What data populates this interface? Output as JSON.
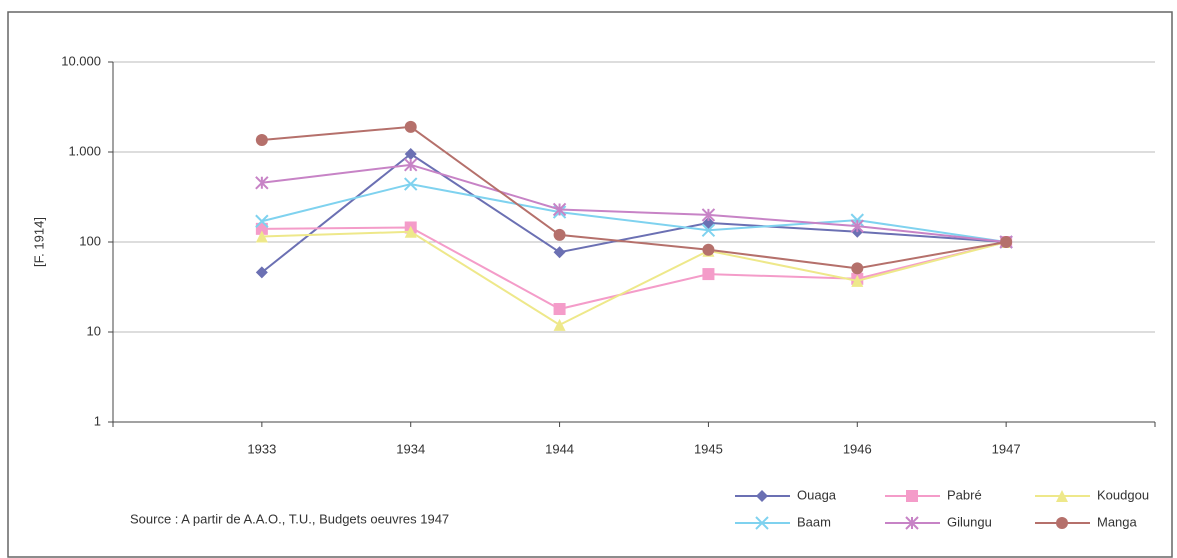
{
  "chart_data": {
    "type": "line",
    "y_label": "[F. 1914]",
    "source": "Source : A partir de A.A.O., T.U., Budgets oeuvres 1947",
    "categories": [
      "1933",
      "1934",
      "1944",
      "1945",
      "1946",
      "1947"
    ],
    "log_scale": true,
    "grid": true,
    "legend": "bottom-right",
    "ylim": [
      1,
      10000
    ],
    "yticks": [
      1,
      10,
      100,
      {
        "value": 1000,
        "label": "1.000"
      },
      {
        "value": 10000,
        "label": "10.000"
      }
    ],
    "series": [
      {
        "name": "Ouaga",
        "color": "#6b70b3",
        "marker": "diamond",
        "values": [
          46,
          950,
          77,
          163,
          130,
          100
        ]
      },
      {
        "name": "Pabré",
        "color": "#f49cc9",
        "marker": "square",
        "values": [
          140,
          145,
          18,
          44,
          39,
          100
        ]
      },
      {
        "name": "Koudgou",
        "color": "#eee88a",
        "marker": "triangle",
        "values": [
          115,
          130,
          12,
          80,
          37,
          100
        ]
      },
      {
        "name": "Baam",
        "color": "#7fd2ef",
        "marker": "x",
        "values": [
          170,
          440,
          215,
          135,
          175,
          100
        ]
      },
      {
        "name": "Gilungu",
        "color": "#c783c6",
        "marker": "star",
        "values": [
          455,
          720,
          230,
          200,
          150,
          100
        ]
      },
      {
        "name": "Manga",
        "color": "#b5706b",
        "marker": "circle",
        "values": [
          1360,
          1900,
          120,
          82,
          51,
          100
        ]
      }
    ]
  }
}
